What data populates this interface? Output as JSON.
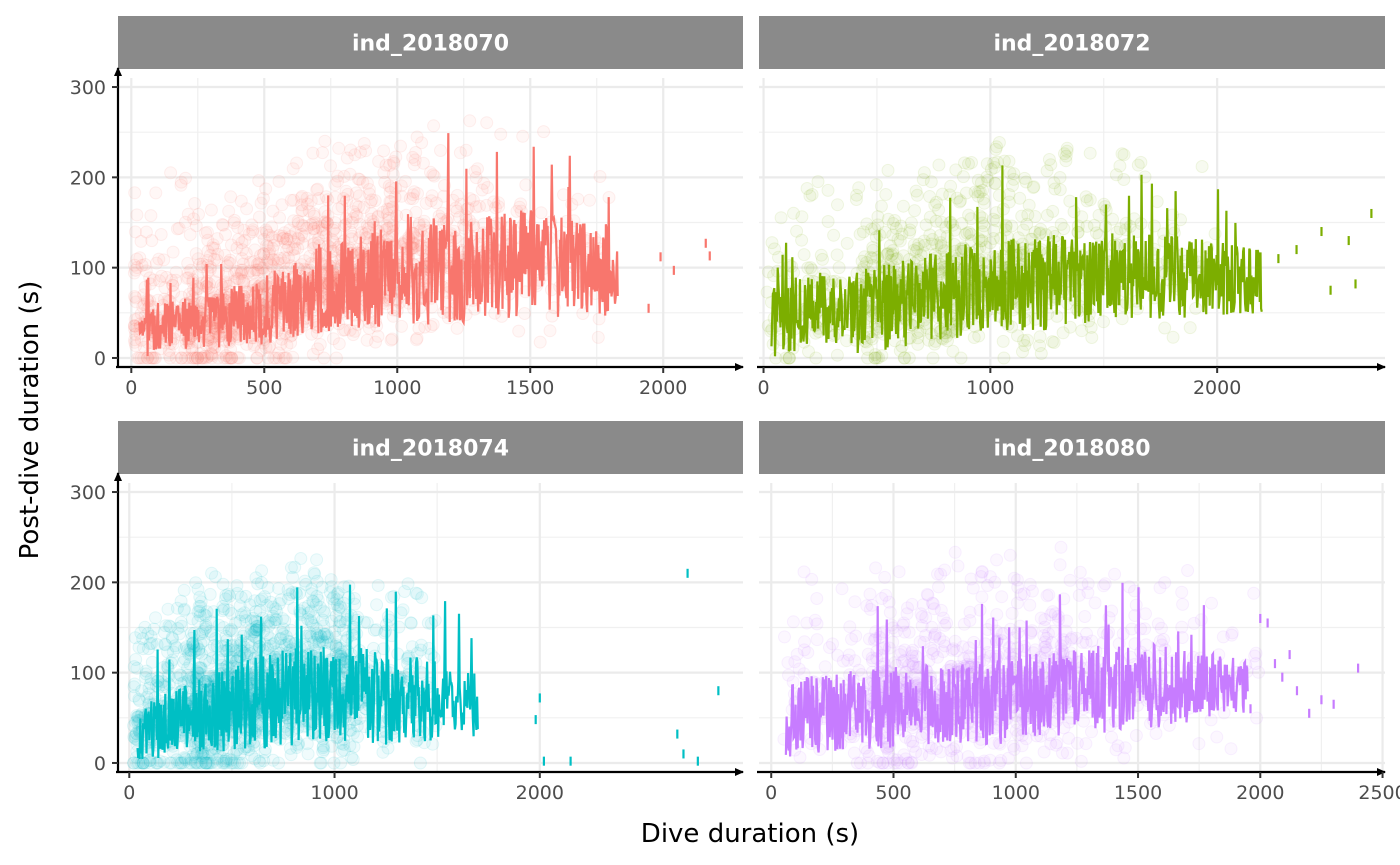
{
  "chart_data": {
    "type": "scatter",
    "facet_layout": "2x2",
    "xlabel": "Dive duration (s)",
    "ylabel": "Post-dive duration (s)",
    "grid": true,
    "legend": "none",
    "y_ticks": [
      0,
      100,
      200,
      300
    ],
    "ylim": [
      -10,
      310
    ],
    "panels": [
      {
        "title": "ind_2018070",
        "color": "#F8766D",
        "xlim": [
          -50,
          2300
        ],
        "x_ticks": [
          0,
          500,
          1000,
          1500,
          2000
        ],
        "x_range": [
          30,
          1830
        ],
        "line_profile": [
          [
            30,
            20
          ],
          [
            100,
            35
          ],
          [
            300,
            40
          ],
          [
            500,
            55
          ],
          [
            700,
            75
          ],
          [
            900,
            95
          ],
          [
            1100,
            100
          ],
          [
            1300,
            100
          ],
          [
            1500,
            105
          ],
          [
            1700,
            100
          ],
          [
            1830,
            95
          ]
        ],
        "line_spread": [
          [
            30,
            25
          ],
          [
            300,
            30
          ],
          [
            600,
            45
          ],
          [
            900,
            60
          ],
          [
            1200,
            65
          ],
          [
            1500,
            60
          ],
          [
            1830,
            50
          ]
        ],
        "sparse_points": [
          [
            1945,
            55
          ],
          [
            1990,
            112
          ],
          [
            2040,
            97
          ],
          [
            2160,
            127
          ],
          [
            2175,
            113
          ]
        ],
        "scatter_density": [
          [
            0,
            200,
            800
          ],
          [
            200,
            600,
            3000
          ],
          [
            600,
            1000,
            3000
          ],
          [
            1000,
            1400,
            1800
          ],
          [
            1400,
            1800,
            500
          ]
        ]
      },
      {
        "title": "ind_2018072",
        "color": "#7CAE00",
        "xlim": [
          -20,
          2740
        ],
        "x_ticks": [
          0,
          1000,
          2000
        ],
        "x_range": [
          35,
          2200
        ],
        "line_profile": [
          [
            35,
            40
          ],
          [
            200,
            55
          ],
          [
            400,
            50
          ],
          [
            700,
            65
          ],
          [
            1000,
            80
          ],
          [
            1300,
            85
          ],
          [
            1600,
            90
          ],
          [
            1900,
            90
          ],
          [
            2200,
            85
          ]
        ],
        "line_spread": [
          [
            35,
            40
          ],
          [
            300,
            45
          ],
          [
            700,
            50
          ],
          [
            1100,
            55
          ],
          [
            1500,
            50
          ],
          [
            1900,
            45
          ],
          [
            2200,
            35
          ]
        ],
        "sparse_points": [
          [
            2270,
            110
          ],
          [
            2350,
            120
          ],
          [
            2460,
            140
          ],
          [
            2500,
            75
          ],
          [
            2580,
            130
          ],
          [
            2610,
            82
          ],
          [
            2680,
            160
          ]
        ],
        "scatter_density": [
          [
            0,
            400,
            600
          ],
          [
            400,
            800,
            1800
          ],
          [
            800,
            1200,
            1800
          ],
          [
            1200,
            1600,
            900
          ],
          [
            1600,
            2000,
            300
          ]
        ]
      },
      {
        "title": "ind_2018074",
        "color": "#00BFC4",
        "xlim": [
          -55,
          2990
        ],
        "x_ticks": [
          0,
          1000,
          2000
        ],
        "x_range": [
          40,
          1700
        ],
        "line_profile": [
          [
            40,
            30
          ],
          [
            150,
            40
          ],
          [
            300,
            50
          ],
          [
            500,
            60
          ],
          [
            700,
            70
          ],
          [
            900,
            75
          ],
          [
            1100,
            75
          ],
          [
            1300,
            70
          ],
          [
            1500,
            70
          ],
          [
            1700,
            65
          ]
        ],
        "line_spread": [
          [
            40,
            30
          ],
          [
            300,
            40
          ],
          [
            700,
            55
          ],
          [
            1100,
            55
          ],
          [
            1500,
            45
          ],
          [
            1700,
            35
          ]
        ],
        "sparse_points": [
          [
            2000,
            72
          ],
          [
            2020,
            2
          ],
          [
            1980,
            48
          ],
          [
            2150,
            2
          ],
          [
            2670,
            32
          ],
          [
            2700,
            10
          ],
          [
            2720,
            210
          ],
          [
            2770,
            2
          ],
          [
            2870,
            80
          ]
        ],
        "scatter_density": [
          [
            0,
            300,
            1500
          ],
          [
            300,
            700,
            4000
          ],
          [
            700,
            1100,
            3000
          ],
          [
            1100,
            1500,
            800
          ]
        ]
      },
      {
        "title": "ind_2018080",
        "color": "#C77CFF",
        "xlim": [
          -50,
          2510
        ],
        "x_ticks": [
          0,
          500,
          1000,
          1500,
          2000,
          2500
        ],
        "x_range": [
          60,
          1950
        ],
        "line_profile": [
          [
            60,
            50
          ],
          [
            200,
            55
          ],
          [
            400,
            60
          ],
          [
            700,
            65
          ],
          [
            1000,
            70
          ],
          [
            1300,
            80
          ],
          [
            1600,
            85
          ],
          [
            1950,
            85
          ]
        ],
        "line_spread": [
          [
            60,
            45
          ],
          [
            300,
            45
          ],
          [
            700,
            45
          ],
          [
            1100,
            50
          ],
          [
            1500,
            50
          ],
          [
            1950,
            30
          ]
        ],
        "sparse_points": [
          [
            1960,
            60
          ],
          [
            2000,
            160
          ],
          [
            2030,
            155
          ],
          [
            2060,
            110
          ],
          [
            2090,
            95
          ],
          [
            2120,
            120
          ],
          [
            2150,
            80
          ],
          [
            2200,
            55
          ],
          [
            2250,
            70
          ],
          [
            2300,
            65
          ],
          [
            2400,
            105
          ]
        ],
        "scatter_density": [
          [
            0,
            400,
            600
          ],
          [
            400,
            800,
            2000
          ],
          [
            800,
            1200,
            1800
          ],
          [
            1200,
            1600,
            800
          ],
          [
            1600,
            2000,
            250
          ]
        ]
      }
    ]
  }
}
